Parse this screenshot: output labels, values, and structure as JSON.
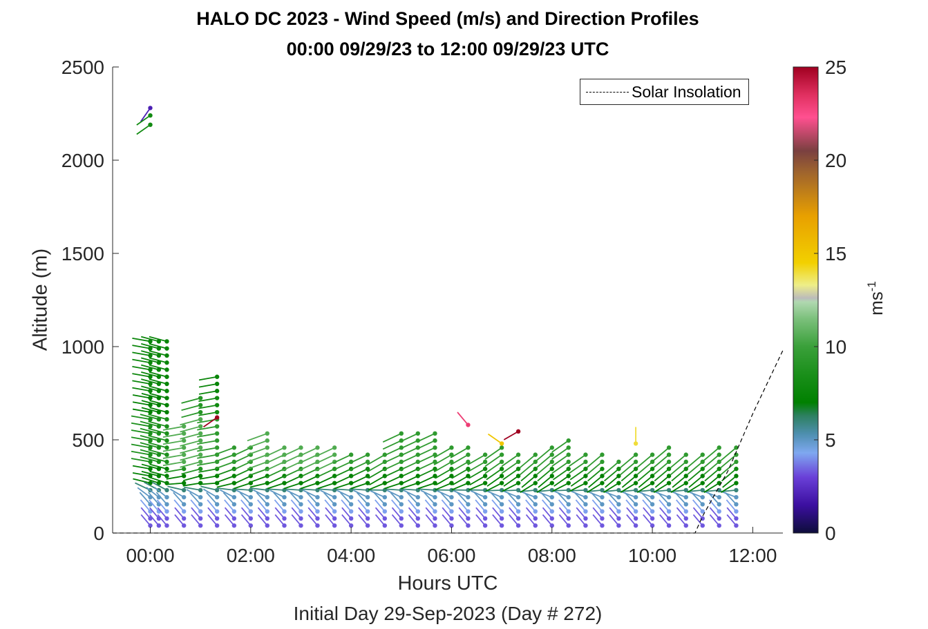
{
  "chart_data": {
    "type": "wind-barb-profile",
    "title": "HALO DC 2023 - Wind Speed (m/s) and Direction Profiles",
    "subtitle_line": "00:00 09/29/23 to 12:00 09/29/23  UTC",
    "xlabel": "Hours UTC",
    "footer": "Initial Day 29-Sep-2023 (Day # 272)",
    "ylabel": "Altitude (m)",
    "xlim": [
      -0.75,
      12.6
    ],
    "ylim": [
      0,
      2500
    ],
    "x_ticks": [
      0,
      2,
      4,
      6,
      8,
      10,
      12
    ],
    "x_tick_labels": [
      "00:00",
      "02:00",
      "04:00",
      "06:00",
      "08:00",
      "10:00",
      "12:00"
    ],
    "y_ticks": [
      0,
      500,
      1000,
      1500,
      2000,
      2500
    ],
    "y_tick_labels": [
      "0",
      "500",
      "1000",
      "1500",
      "2000",
      "2500"
    ],
    "colorbar": {
      "label_base": "ms",
      "label_exp": "-1",
      "ticks": [
        0,
        5,
        10,
        15,
        20,
        25
      ],
      "tick_labels": [
        "0",
        "5",
        "10",
        "15",
        "20",
        "25"
      ],
      "range": [
        0,
        25
      ],
      "stops": [
        {
          "v": 0,
          "c": "#0d0d3a"
        },
        {
          "v": 1.5,
          "c": "#3c0fa0"
        },
        {
          "v": 3,
          "c": "#6a40d8"
        },
        {
          "v": 4.3,
          "c": "#7fa8f0"
        },
        {
          "v": 5.3,
          "c": "#4e8fb0"
        },
        {
          "v": 6.3,
          "c": "#2d8060"
        },
        {
          "v": 7,
          "c": "#008000"
        },
        {
          "v": 8.5,
          "c": "#1a8f1a"
        },
        {
          "v": 10,
          "c": "#3aa03a"
        },
        {
          "v": 11.5,
          "c": "#7cc07c"
        },
        {
          "v": 12.4,
          "c": "#b0d8b0"
        },
        {
          "v": 12.6,
          "c": "#bbbbbb"
        },
        {
          "v": 13.3,
          "c": "#eeee88"
        },
        {
          "v": 14.5,
          "c": "#f2d000"
        },
        {
          "v": 17,
          "c": "#e8a000"
        },
        {
          "v": 19.5,
          "c": "#9a6030"
        },
        {
          "v": 20.5,
          "c": "#7a4040"
        },
        {
          "v": 22.3,
          "c": "#ff5090"
        },
        {
          "v": 23.5,
          "c": "#e03060"
        },
        {
          "v": 25,
          "c": "#a00020"
        }
      ]
    },
    "legend": {
      "label": "Solar Insolation",
      "position": "top-right"
    },
    "solar_insolation": {
      "x": [
        -0.75,
        10.85,
        11.0,
        11.5,
        12.0,
        12.6
      ],
      "y": [
        0,
        0,
        90,
        330,
        640,
        980
      ]
    },
    "profiles": [
      {
        "t": 0.0,
        "top": 1060,
        "dir": 280,
        "speed": 7
      },
      {
        "t": 0.17,
        "top": 1050,
        "dir": 285,
        "speed": 7
      },
      {
        "t": 0.33,
        "top": 1050,
        "dir": 285,
        "speed": 7
      },
      {
        "t": 0.67,
        "top": 580,
        "dir": 260,
        "speed": 9
      },
      {
        "t": 1.0,
        "top": 760,
        "dir": 255,
        "speed": 9
      },
      {
        "t": 1.33,
        "top": 870,
        "dir": 260,
        "speed": 8
      },
      {
        "t": 1.67,
        "top": 460,
        "dir": 250,
        "speed": 8
      },
      {
        "t": 2.0,
        "top": 470,
        "dir": 245,
        "speed": 8
      },
      {
        "t": 2.33,
        "top": 545,
        "dir": 250,
        "speed": 9
      },
      {
        "t": 2.67,
        "top": 480,
        "dir": 245,
        "speed": 9
      },
      {
        "t": 3.0,
        "top": 475,
        "dir": 245,
        "speed": 9
      },
      {
        "t": 3.33,
        "top": 480,
        "dir": 245,
        "speed": 9
      },
      {
        "t": 3.67,
        "top": 470,
        "dir": 245,
        "speed": 9
      },
      {
        "t": 4.0,
        "top": 440,
        "dir": 245,
        "speed": 8
      },
      {
        "t": 4.33,
        "top": 450,
        "dir": 245,
        "speed": 8
      },
      {
        "t": 4.67,
        "top": 440,
        "dir": 240,
        "speed": 8
      },
      {
        "t": 5.0,
        "top": 540,
        "dir": 245,
        "speed": 8
      },
      {
        "t": 5.33,
        "top": 535,
        "dir": 245,
        "speed": 8
      },
      {
        "t": 5.67,
        "top": 545,
        "dir": 245,
        "speed": 8
      },
      {
        "t": 6.0,
        "top": 470,
        "dir": 240,
        "speed": 8
      },
      {
        "t": 6.33,
        "top": 470,
        "dir": 240,
        "speed": 8
      },
      {
        "t": 6.67,
        "top": 455,
        "dir": 240,
        "speed": 8
      },
      {
        "t": 7.0,
        "top": 460,
        "dir": 235,
        "speed": 8
      },
      {
        "t": 7.33,
        "top": 450,
        "dir": 235,
        "speed": 8
      },
      {
        "t": 7.67,
        "top": 445,
        "dir": 230,
        "speed": 8
      },
      {
        "t": 8.0,
        "top": 470,
        "dir": 230,
        "speed": 8
      },
      {
        "t": 8.33,
        "top": 515,
        "dir": 235,
        "speed": 8
      },
      {
        "t": 8.67,
        "top": 450,
        "dir": 235,
        "speed": 8
      },
      {
        "t": 9.0,
        "top": 430,
        "dir": 230,
        "speed": 8
      },
      {
        "t": 9.33,
        "top": 415,
        "dir": 230,
        "speed": 8
      },
      {
        "t": 9.67,
        "top": 440,
        "dir": 230,
        "speed": 8
      },
      {
        "t": 10.0,
        "top": 445,
        "dir": 230,
        "speed": 8
      },
      {
        "t": 10.33,
        "top": 475,
        "dir": 230,
        "speed": 8
      },
      {
        "t": 10.67,
        "top": 450,
        "dir": 230,
        "speed": 8
      },
      {
        "t": 11.0,
        "top": 450,
        "dir": 230,
        "speed": 8
      },
      {
        "t": 11.33,
        "top": 480,
        "dir": 230,
        "speed": 8
      },
      {
        "t": 11.67,
        "top": 480,
        "dir": 230,
        "speed": 8
      }
    ],
    "isolated_points": [
      {
        "t": 0.0,
        "alt": 2280,
        "dir": 215,
        "speed": 2
      },
      {
        "t": 0.0,
        "alt": 2240,
        "dir": 235,
        "speed": 8
      },
      {
        "t": 0.0,
        "alt": 2190,
        "dir": 235,
        "speed": 8
      },
      {
        "t": 1.33,
        "alt": 620,
        "dir": 235,
        "speed": 25
      },
      {
        "t": 6.33,
        "alt": 580,
        "dir": 320,
        "speed": 23
      },
      {
        "t": 7.0,
        "alt": 480,
        "dir": 305,
        "speed": 15
      },
      {
        "t": 7.33,
        "alt": 545,
        "dir": 240,
        "speed": 25
      },
      {
        "t": 9.67,
        "alt": 480,
        "dir": 0,
        "speed": 14
      }
    ]
  }
}
